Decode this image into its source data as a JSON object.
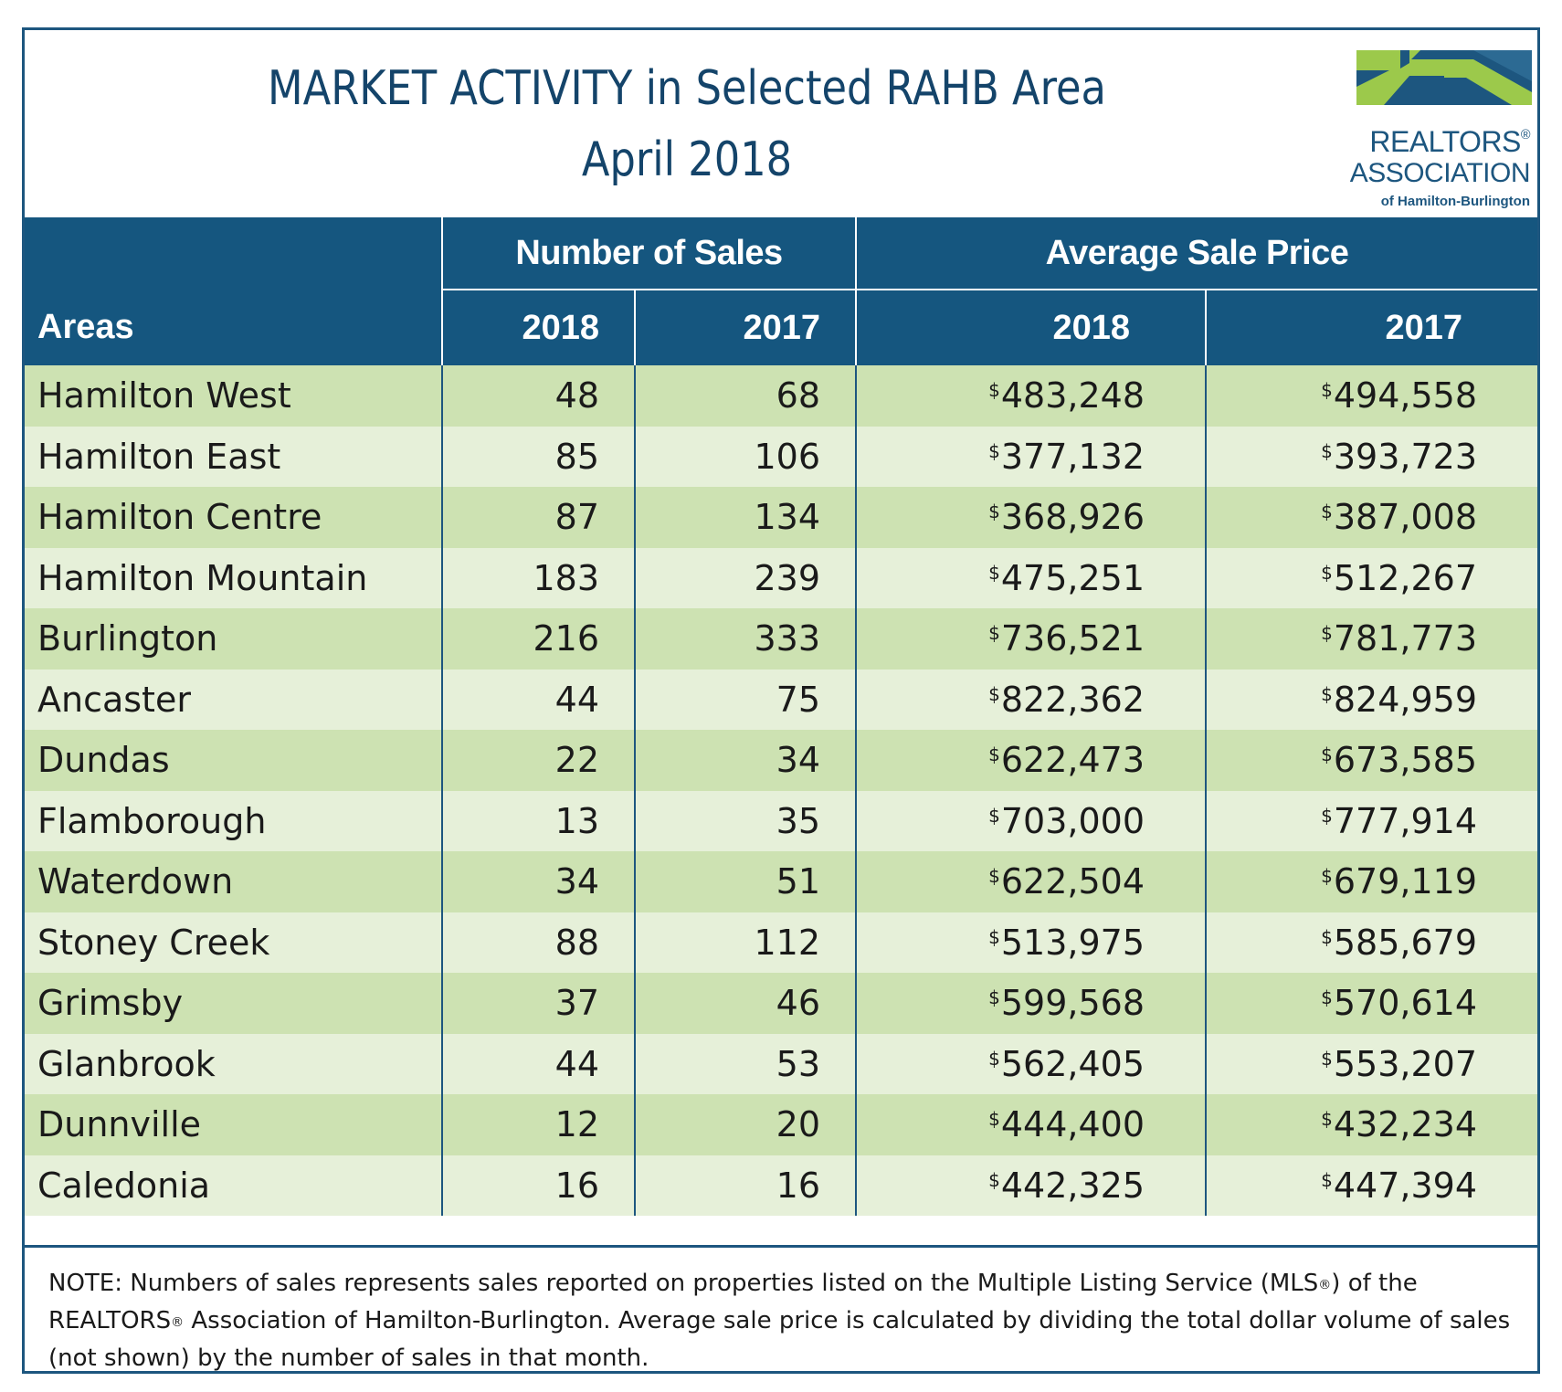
{
  "header": {
    "title_line1": "MARKET ACTIVITY in Selected RAHB Area",
    "title_line2": "April 2018"
  },
  "logo": {
    "line1": "REALTORS",
    "line2": "ASSOCIATION",
    "line3": "of Hamilton-Burlington",
    "colors": {
      "blue": "#1d567f",
      "green": "#9cc94b"
    }
  },
  "table": {
    "group_headers": {
      "sales": "Number of Sales",
      "price": "Average Sale Price"
    },
    "column_headers": {
      "areas": "Areas",
      "sales_2018": "2018",
      "sales_2017": "2017",
      "price_2018": "2018",
      "price_2017": "2017"
    },
    "currency_symbol": "$",
    "rows": [
      {
        "area": "Hamilton West",
        "sales_2018": "48",
        "sales_2017": "68",
        "price_2018": "483,248",
        "price_2017": "494,558"
      },
      {
        "area": "Hamilton East",
        "sales_2018": "85",
        "sales_2017": "106",
        "price_2018": "377,132",
        "price_2017": "393,723"
      },
      {
        "area": "Hamilton Centre",
        "sales_2018": "87",
        "sales_2017": "134",
        "price_2018": "368,926",
        "price_2017": "387,008"
      },
      {
        "area": "Hamilton Mountain",
        "sales_2018": "183",
        "sales_2017": "239",
        "price_2018": "475,251",
        "price_2017": "512,267"
      },
      {
        "area": "Burlington",
        "sales_2018": "216",
        "sales_2017": "333",
        "price_2018": "736,521",
        "price_2017": "781,773"
      },
      {
        "area": "Ancaster",
        "sales_2018": "44",
        "sales_2017": "75",
        "price_2018": "822,362",
        "price_2017": "824,959"
      },
      {
        "area": "Dundas",
        "sales_2018": "22",
        "sales_2017": "34",
        "price_2018": "622,473",
        "price_2017": "673,585"
      },
      {
        "area": "Flamborough",
        "sales_2018": "13",
        "sales_2017": "35",
        "price_2018": "703,000",
        "price_2017": "777,914"
      },
      {
        "area": "Waterdown",
        "sales_2018": "34",
        "sales_2017": "51",
        "price_2018": "622,504",
        "price_2017": "679,119"
      },
      {
        "area": "Stoney Creek",
        "sales_2018": "88",
        "sales_2017": "112",
        "price_2018": "513,975",
        "price_2017": "585,679"
      },
      {
        "area": "Grimsby",
        "sales_2018": "37",
        "sales_2017": "46",
        "price_2018": "599,568",
        "price_2017": "570,614"
      },
      {
        "area": "Glanbrook",
        "sales_2018": "44",
        "sales_2017": "53",
        "price_2018": "562,405",
        "price_2017": "553,207"
      },
      {
        "area": "Dunnville",
        "sales_2018": "12",
        "sales_2017": "20",
        "price_2018": "444,400",
        "price_2017": "432,234"
      },
      {
        "area": "Caledonia",
        "sales_2018": "16",
        "sales_2017": "16",
        "price_2018": "442,325",
        "price_2017": "447,394"
      }
    ]
  },
  "note": {
    "part1": "NOTE:  Numbers of sales represents sales reported on properties listed on the Multiple Listing Service (MLS",
    "part2": ") of the REALTORS",
    "part3": " Association of Hamilton-Burlington.  Average sale price is calculated by dividing the total dollar volume of sales (not shown) by the number of sales in that month."
  }
}
